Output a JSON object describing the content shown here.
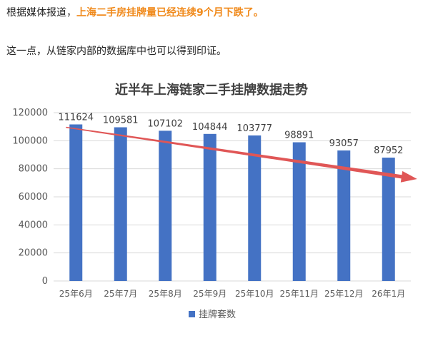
{
  "article": {
    "line1_prefix": "根据媒体报道，",
    "line1_highlight": "上海二手房挂牌量已经连续9个月下跌了。",
    "line2": "这一点，从链家内部的数据库中也可以得到印证。"
  },
  "colors": {
    "highlight": "#f08a1c",
    "bar": "#4472c4",
    "trend_arrow": "#e05656",
    "axis_text": "#595959",
    "title_text": "#404040",
    "gridline": "#d9d9d9"
  },
  "chart_data": {
    "type": "bar",
    "title": "近半年上海链家二手挂牌数据走势",
    "categories": [
      "25年6月",
      "25年7月",
      "25年8月",
      "25年9月",
      "25年10月",
      "25年11月",
      "25年12月",
      "26年1月"
    ],
    "series": [
      {
        "name": "挂牌套数",
        "values": [
          111624,
          109581,
          107102,
          104844,
          103777,
          98891,
          93057,
          87952
        ]
      }
    ],
    "data_labels": [
      "111624",
      "109581",
      "107102",
      "104844",
      "103777",
      "98891",
      "93057",
      "87952"
    ],
    "y_ticks": [
      "0",
      "20000",
      "40000",
      "60000",
      "80000",
      "100000",
      "120000"
    ],
    "ylim": [
      0,
      120000
    ],
    "grid": "horizontal",
    "legend": "bottom",
    "annotation": "downward trend arrow"
  }
}
